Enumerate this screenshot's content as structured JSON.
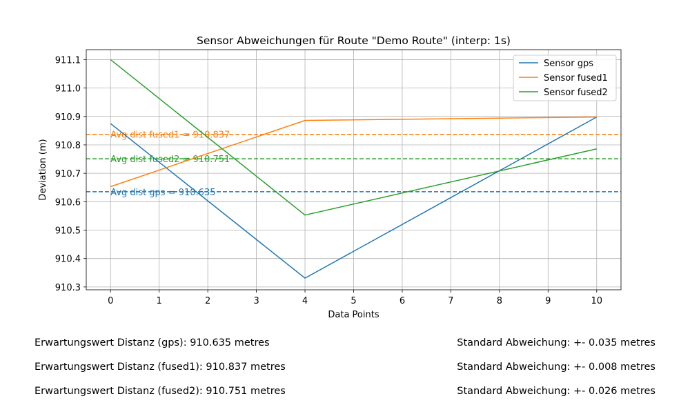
{
  "chart_data": {
    "type": "line",
    "title": "Sensor Abweichungen für Route \"Demo Route\" (interp: 1s)",
    "xlabel": "Data Points",
    "ylabel": "Deviation (m)",
    "xlim": [
      -0.5,
      10.5
    ],
    "ylim": [
      910.29,
      911.135
    ],
    "xticks": [
      0,
      1,
      2,
      3,
      4,
      5,
      6,
      7,
      8,
      9,
      10
    ],
    "yticks": [
      910.3,
      910.4,
      910.5,
      910.6,
      910.7,
      910.8,
      910.9,
      911.0,
      911.1
    ],
    "ytick_labels": [
      "910.3",
      "910.4",
      "910.5",
      "910.6",
      "910.7",
      "910.8",
      "910.9",
      "911.0",
      "911.1"
    ],
    "grid": true,
    "legend_position": "top-right",
    "series": [
      {
        "name": "Sensor gps",
        "color": "#1f77b4",
        "x": [
          0,
          4,
          10
        ],
        "y": [
          910.875,
          910.331,
          910.898
        ]
      },
      {
        "name": "Sensor fused1",
        "color": "#ff7f0e",
        "x": [
          0,
          4,
          10
        ],
        "y": [
          910.653,
          910.886,
          910.898
        ]
      },
      {
        "name": "Sensor fused2",
        "color": "#2ca02c",
        "x": [
          0,
          4,
          10
        ],
        "y": [
          911.1,
          910.553,
          910.786
        ]
      }
    ],
    "hlines": [
      {
        "series": "Sensor fused1",
        "y": 910.837,
        "color": "#ff7f0e",
        "label": "Avg dist fused1 = 910.837"
      },
      {
        "series": "Sensor fused2",
        "y": 910.751,
        "color": "#2ca02c",
        "label": "Avg dist fused2 = 910.751"
      },
      {
        "series": "Sensor gps",
        "y": 910.635,
        "color": "#1f77b4",
        "label": "Avg dist gps = 910.635"
      }
    ]
  },
  "stats": [
    {
      "expectation": "Erwartungswert Distanz (gps): 910.635 metres",
      "deviation": "Standard Abweichung: +- 0.035 metres"
    },
    {
      "expectation": "Erwartungswert Distanz (fused1): 910.837 metres",
      "deviation": "Standard Abweichung: +- 0.008 metres"
    },
    {
      "expectation": "Erwartungswert Distanz (fused2): 910.751 metres",
      "deviation": "Standard Abweichung: +- 0.026 metres"
    }
  ]
}
